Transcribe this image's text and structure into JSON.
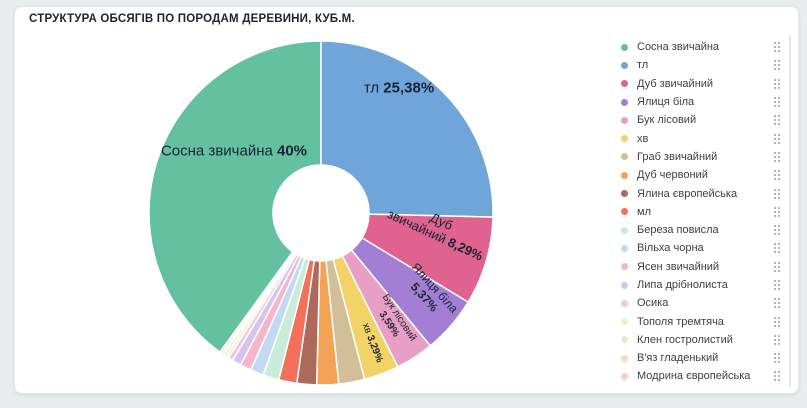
{
  "page": {
    "title": "СТРУКТУРА ОБСЯГІВ ПО ПОРОДАМ ДЕРЕВИНИ, КУБ.М."
  },
  "chart_data": {
    "type": "pie",
    "subtype": "donut",
    "title": "СТРУКТУРА ОБСЯГІВ ПО ПОРОДАМ ДЕРЕВИНИ, КУБ.М.",
    "units": "куб.м",
    "legend_position": "right",
    "start_angle_deg": 216,
    "inner_radius_ratio": 0.28,
    "series": [
      {
        "name": "Сосна звичайна",
        "value": 40,
        "value_label": "40%",
        "color": "#63c1a0",
        "label_lines": [
          "Сосна звичайна 40%"
        ]
      },
      {
        "name": "тл",
        "value": 25.38,
        "value_label": "25,38%",
        "color": "#6fa5d8",
        "label_lines": [
          "тл 25,38%"
        ]
      },
      {
        "name": "Дуб звичайний",
        "value": 8.29,
        "value_label": "8,29%",
        "color": "#e0628f",
        "label_lines": [
          "Дуб",
          "звичайний 8,29%"
        ]
      },
      {
        "name": "Ялиця біла",
        "value": 5.37,
        "value_label": "5,37%",
        "color": "#a37fd3",
        "label_lines": [
          "Ялиця біла",
          "5,37%"
        ]
      },
      {
        "name": "Бук лісовий",
        "value": 3.59,
        "value_label": "3,59%",
        "color": "#e79fc5",
        "label_lines": [
          "Бук лісовий",
          "3,59%"
        ]
      },
      {
        "name": "хв",
        "value": 3.29,
        "value_label": "3,29%",
        "color": "#f3d268",
        "label_lines": [
          "хв 3,29%"
        ]
      },
      {
        "name": "Граб звичайний",
        "value": 2.43,
        "color": "#d2bf97"
      },
      {
        "name": "Дуб червоний",
        "value": 2.05,
        "color": "#f2a355"
      },
      {
        "name": "Ялина європейська",
        "value": 1.85,
        "color": "#ad6a5c"
      },
      {
        "name": "мл",
        "value": 1.7,
        "color": "#f3705a"
      },
      {
        "name": "Береза повисла",
        "value": 1.5,
        "color": "#c8ecd9"
      },
      {
        "name": "Вільха чорна",
        "value": 1.25,
        "color": "#c2d9f1"
      },
      {
        "name": "Ясен звичайний",
        "value": 1.05,
        "color": "#f4b6cb"
      },
      {
        "name": "Липа дрібнолиста",
        "value": 0.85,
        "color": "#d6c4ee"
      },
      {
        "name": "Осика",
        "value": 0.45,
        "color": "#f2c9d9"
      },
      {
        "name": "Тополя тремтяча",
        "value": 0.3,
        "color": "#f5eec2"
      },
      {
        "name": "Клен гостролистий",
        "value": 0.25,
        "color": "#eee5d1"
      },
      {
        "name": "В'яз гладенький",
        "value": 0.2,
        "color": "#f5dbc2"
      },
      {
        "name": "Модрина європейська",
        "value": 0.2,
        "color": "#f6cfc3"
      }
    ]
  }
}
